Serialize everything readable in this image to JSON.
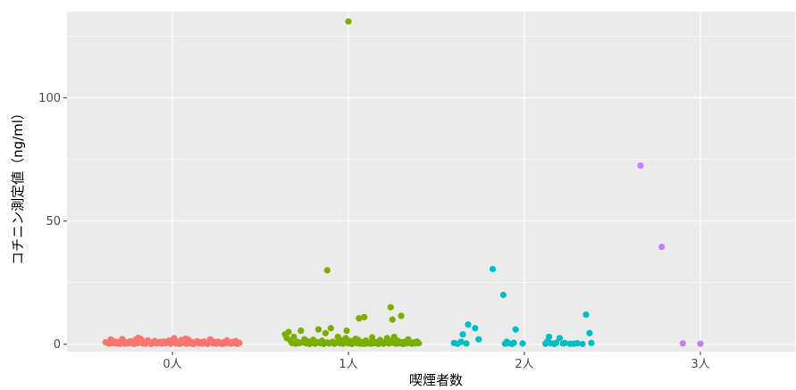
{
  "chart_data": {
    "type": "scatter",
    "title": "",
    "xlabel": "喫煙者数",
    "ylabel": "コチニン測定値（ng/ml）",
    "categories": [
      "0人",
      "1人",
      "2人",
      "3人"
    ],
    "ylim": [
      -3,
      135
    ],
    "yticks": [
      0,
      50,
      100
    ],
    "grid": true,
    "legend": "none",
    "colors": {
      "panel_bg": "#ebebeb",
      "grid_major": "#ffffff",
      "tick_text": "#4d4d4d",
      "series": [
        "#f8766d",
        "#7cae00",
        "#00bfc4",
        "#c77cff"
      ]
    },
    "series": [
      {
        "group": "0人",
        "points": [
          [
            -0.38,
            0.8
          ],
          [
            -0.36,
            0.2
          ],
          [
            -0.35,
            1.9
          ],
          [
            -0.34,
            0.4
          ],
          [
            -0.33,
            1.1
          ],
          [
            -0.32,
            0.3
          ],
          [
            -0.31,
            0.9
          ],
          [
            -0.3,
            0.1
          ],
          [
            -0.29,
            0.6
          ],
          [
            -0.28,
            1.4
          ],
          [
            -0.27,
            0.2
          ],
          [
            -0.26,
            0.7
          ],
          [
            -0.25,
            0.3
          ],
          [
            -0.24,
            1.2
          ],
          [
            -0.23,
            0.5
          ],
          [
            -0.22,
            0.1
          ],
          [
            -0.21,
            1.8
          ],
          [
            -0.2,
            0.4
          ],
          [
            -0.19,
            0.9
          ],
          [
            -0.18,
            2.2
          ],
          [
            -0.17,
            0.3
          ],
          [
            -0.16,
            1.0
          ],
          [
            -0.15,
            0.2
          ],
          [
            -0.14,
            1.6
          ],
          [
            -0.13,
            0.6
          ],
          [
            -0.12,
            0.1
          ],
          [
            -0.11,
            0.8
          ],
          [
            -0.1,
            1.3
          ],
          [
            -0.09,
            0.3
          ],
          [
            -0.08,
            0.5
          ],
          [
            -0.07,
            0.9
          ],
          [
            -0.06,
            0.2
          ],
          [
            -0.05,
            1.1
          ],
          [
            -0.04,
            0.4
          ],
          [
            -0.03,
            0.7
          ],
          [
            -0.02,
            1.5
          ],
          [
            -0.01,
            0.2
          ],
          [
            0.0,
            0.6
          ],
          [
            0.01,
            2.5
          ],
          [
            0.02,
            0.3
          ],
          [
            0.03,
            1.0
          ],
          [
            0.04,
            0.1
          ],
          [
            0.05,
            1.7
          ],
          [
            0.06,
            0.5
          ],
          [
            0.07,
            0.8
          ],
          [
            0.08,
            0.2
          ],
          [
            0.09,
            1.9
          ],
          [
            0.1,
            0.4
          ],
          [
            0.11,
            0.9
          ],
          [
            0.12,
            0.1
          ],
          [
            0.13,
            0.6
          ],
          [
            0.14,
            1.2
          ],
          [
            0.15,
            0.3
          ],
          [
            0.16,
            0.8
          ],
          [
            0.17,
            0.2
          ],
          [
            0.18,
            1.1
          ],
          [
            0.19,
            0.5
          ],
          [
            0.2,
            0.1
          ],
          [
            0.21,
            0.7
          ],
          [
            0.22,
            1.4
          ],
          [
            0.23,
            0.3
          ],
          [
            0.24,
            0.9
          ],
          [
            0.25,
            0.2
          ],
          [
            0.26,
            1.0
          ],
          [
            0.27,
            0.4
          ],
          [
            0.28,
            0.1
          ],
          [
            0.29,
            0.8
          ],
          [
            0.3,
            0.3
          ],
          [
            0.31,
            1.6
          ],
          [
            0.32,
            0.5
          ],
          [
            0.33,
            0.2
          ],
          [
            0.34,
            0.9
          ],
          [
            0.35,
            0.4
          ],
          [
            0.36,
            1.3
          ],
          [
            0.37,
            0.1
          ],
          [
            0.38,
            0.6
          ],
          [
            -0.195,
            2.6
          ],
          [
            0.075,
            2.3
          ],
          [
            -0.285,
            2.1
          ],
          [
            0.215,
            2.0
          ]
        ]
      },
      {
        "group": "1人",
        "points": [
          [
            0.0,
            131
          ],
          [
            -0.12,
            30
          ],
          [
            0.06,
            10.5
          ],
          [
            0.09,
            11
          ],
          [
            0.24,
            15
          ],
          [
            0.25,
            10
          ],
          [
            0.3,
            11.5
          ],
          [
            -0.36,
            4
          ],
          [
            -0.35,
            2.5
          ],
          [
            -0.34,
            5
          ],
          [
            -0.33,
            1.5
          ],
          [
            -0.32,
            0.5
          ],
          [
            -0.31,
            3
          ],
          [
            -0.3,
            0.2
          ],
          [
            -0.29,
            1
          ],
          [
            -0.28,
            0.4
          ],
          [
            -0.27,
            5.5
          ],
          [
            -0.26,
            0.8
          ],
          [
            -0.25,
            2
          ],
          [
            -0.24,
            0.3
          ],
          [
            -0.23,
            1.2
          ],
          [
            -0.22,
            0.1
          ],
          [
            -0.21,
            0.6
          ],
          [
            -0.2,
            1.8
          ],
          [
            -0.19,
            0.2
          ],
          [
            -0.18,
            0.9
          ],
          [
            -0.17,
            6
          ],
          [
            -0.16,
            0.4
          ],
          [
            -0.15,
            1.4
          ],
          [
            -0.14,
            0.1
          ],
          [
            -0.13,
            4.5
          ],
          [
            -0.12,
            0.7
          ],
          [
            -0.11,
            0.3
          ],
          [
            -0.1,
            6.5
          ],
          [
            -0.09,
            1
          ],
          [
            -0.08,
            0.2
          ],
          [
            -0.07,
            0.6
          ],
          [
            -0.06,
            3
          ],
          [
            -0.05,
            0.4
          ],
          [
            -0.04,
            1.6
          ],
          [
            -0.03,
            0.2
          ],
          [
            -0.02,
            0.8
          ],
          [
            -0.01,
            5.5
          ],
          [
            0.0,
            0.3
          ],
          [
            0.01,
            1.3
          ],
          [
            0.02,
            0.1
          ],
          [
            0.03,
            0.7
          ],
          [
            0.04,
            2.2
          ],
          [
            0.05,
            0.4
          ],
          [
            0.06,
            1
          ],
          [
            0.07,
            0.2
          ],
          [
            0.08,
            0.9
          ],
          [
            0.09,
            0.1
          ],
          [
            0.1,
            1.5
          ],
          [
            0.11,
            0.3
          ],
          [
            0.12,
            0.6
          ],
          [
            0.13,
            0.2
          ],
          [
            0.14,
            1.1
          ],
          [
            0.15,
            0.4
          ],
          [
            0.16,
            0.8
          ],
          [
            0.17,
            0.1
          ],
          [
            0.18,
            1.7
          ],
          [
            0.19,
            0.5
          ],
          [
            0.2,
            0.2
          ],
          [
            0.21,
            0.9
          ],
          [
            0.22,
            2.5
          ],
          [
            0.23,
            0.3
          ],
          [
            0.24,
            1.2
          ],
          [
            0.25,
            0.6
          ],
          [
            0.26,
            3
          ],
          [
            0.27,
            0.2
          ],
          [
            0.28,
            1.4
          ],
          [
            0.29,
            0.4
          ],
          [
            0.3,
            0.8
          ],
          [
            0.31,
            0.1
          ],
          [
            0.32,
            1
          ],
          [
            0.33,
            0.3
          ],
          [
            0.34,
            2
          ],
          [
            0.35,
            0.5
          ],
          [
            0.36,
            0.2
          ],
          [
            0.37,
            0.7
          ],
          [
            0.38,
            0.3
          ],
          [
            0.39,
            1.1
          ],
          [
            0.4,
            0.4
          ],
          [
            -0.015,
            2.5
          ],
          [
            0.055,
            1.8
          ],
          [
            0.135,
            2.8
          ]
        ]
      },
      {
        "group": "2人",
        "points": [
          [
            -0.18,
            30.5
          ],
          [
            -0.12,
            20
          ],
          [
            -0.1,
            1
          ],
          [
            -0.05,
            6
          ],
          [
            -0.32,
            8
          ],
          [
            -0.28,
            6.5
          ],
          [
            -0.35,
            4
          ],
          [
            -0.26,
            2
          ],
          [
            -0.4,
            0.5
          ],
          [
            -0.38,
            0.2
          ],
          [
            -0.36,
            1
          ],
          [
            -0.33,
            0.3
          ],
          [
            -0.11,
            0.2
          ],
          [
            -0.09,
            0.4
          ],
          [
            -0.07,
            0.1
          ],
          [
            -0.06,
            0.6
          ],
          [
            -0.01,
            0.3
          ],
          [
            0.12,
            0.2
          ],
          [
            0.13,
            1
          ],
          [
            0.14,
            3
          ],
          [
            0.15,
            0.4
          ],
          [
            0.17,
            0.1
          ],
          [
            0.18,
            0.6
          ],
          [
            0.2,
            2.5
          ],
          [
            0.22,
            0.3
          ],
          [
            0.23,
            0.5
          ],
          [
            0.28,
            0.2
          ],
          [
            0.3,
            0.4
          ],
          [
            0.33,
            0.1
          ],
          [
            0.35,
            12
          ],
          [
            0.37,
            4.5
          ],
          [
            0.38,
            0.5
          ],
          [
            0.26,
            0.2
          ]
        ]
      },
      {
        "group": "3人",
        "points": [
          [
            -0.34,
            72.5
          ],
          [
            -0.22,
            39.5
          ],
          [
            -0.1,
            0.3
          ],
          [
            0.0,
            0.2
          ]
        ]
      }
    ]
  }
}
